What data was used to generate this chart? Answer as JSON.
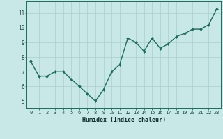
{
  "x": [
    0,
    1,
    2,
    3,
    4,
    5,
    6,
    7,
    8,
    9,
    10,
    11,
    12,
    13,
    14,
    15,
    16,
    17,
    18,
    19,
    20,
    21,
    22,
    23
  ],
  "y": [
    7.7,
    6.7,
    6.7,
    7.0,
    7.0,
    6.5,
    6.0,
    5.5,
    5.0,
    5.8,
    7.0,
    7.5,
    9.3,
    9.0,
    8.4,
    9.3,
    8.6,
    8.9,
    9.4,
    9.6,
    9.9,
    9.9,
    10.2,
    11.3
  ],
  "xlabel": "Humidex (Indice chaleur)",
  "xlim": [
    -0.5,
    23.5
  ],
  "ylim": [
    4.5,
    11.8
  ],
  "yticks": [
    5,
    6,
    7,
    8,
    9,
    10,
    11
  ],
  "xticks": [
    0,
    1,
    2,
    3,
    4,
    5,
    6,
    7,
    8,
    9,
    10,
    11,
    12,
    13,
    14,
    15,
    16,
    17,
    18,
    19,
    20,
    21,
    22,
    23
  ],
  "line_color": "#1a6b5a",
  "marker_color": "#1a6b5a",
  "bg_color": "#c8e8e8",
  "grid_color": "#aacece",
  "tick_label_color": "#1a4a4a",
  "xlabel_color": "#0a2a2a",
  "markersize": 2.0,
  "linewidth": 1.0,
  "xtick_fontsize": 5.0,
  "ytick_fontsize": 5.5,
  "xlabel_fontsize": 6.0
}
